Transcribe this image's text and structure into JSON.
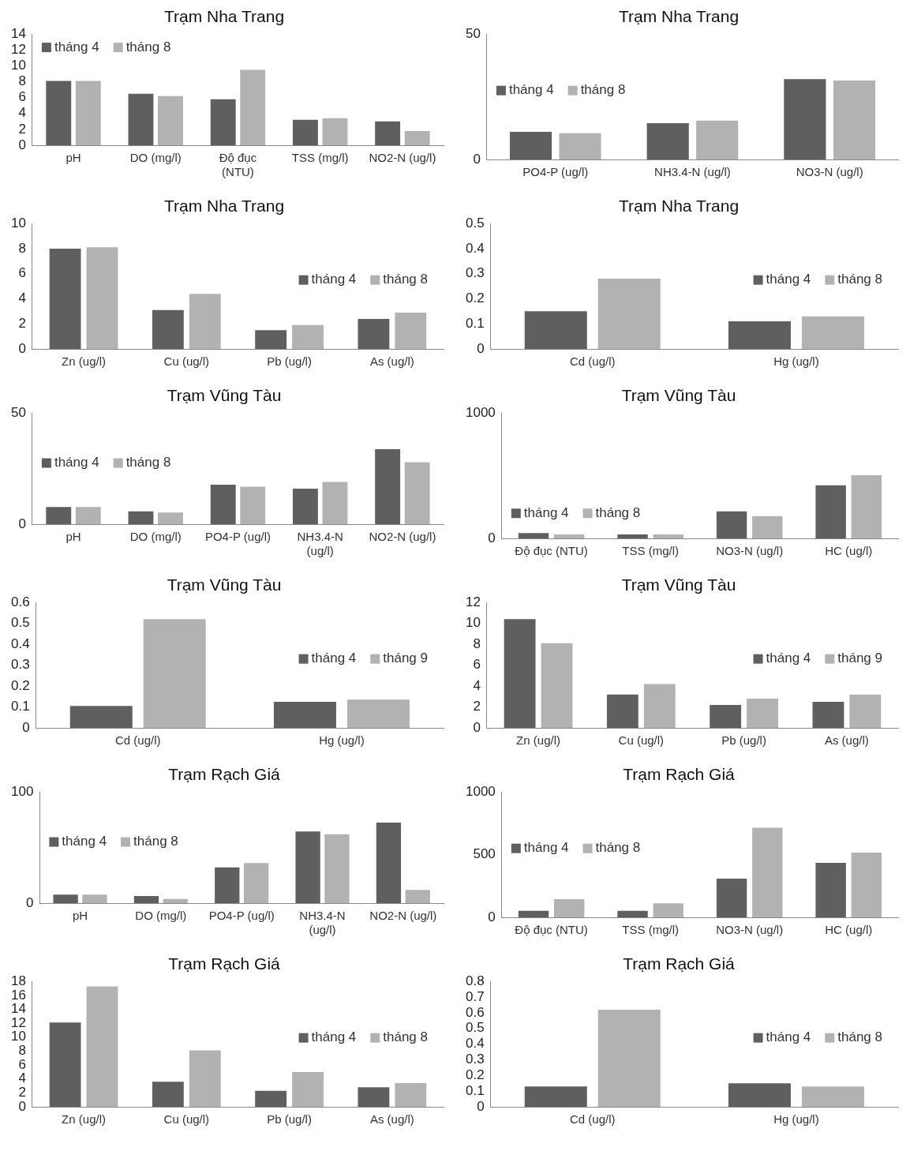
{
  "chart_data": [
    {
      "type": "bar",
      "title": "Trạm Nha Trang",
      "categories": [
        "pH",
        "DO (mg/l)",
        "Độ đục (NTU)",
        "TSS (mg/l)",
        "NO2-N (ug/l)"
      ],
      "ylim": [
        0,
        14
      ],
      "yticks": [
        0,
        2,
        4,
        6,
        8,
        10,
        12,
        14
      ],
      "legend": "top left",
      "series": [
        {
          "name": "tháng 4",
          "color": "#5f5f5f",
          "values": [
            8.1,
            6.5,
            5.8,
            3.2,
            3.0
          ]
        },
        {
          "name": "tháng 8",
          "color": "#b2b2b2",
          "values": [
            8.1,
            6.2,
            9.5,
            3.4,
            1.8
          ]
        }
      ]
    },
    {
      "type": "bar",
      "title": "Trạm Nha Trang",
      "categories": [
        "PO4-P (ug/l)",
        "NH3.4-N (ug/l)",
        "NO3-N (ug/l)"
      ],
      "ylim": [
        0,
        50
      ],
      "yticks": [
        0,
        50
      ],
      "legend": "center left",
      "series": [
        {
          "name": "tháng 4",
          "color": "#5f5f5f",
          "values": [
            11,
            14.5,
            32
          ]
        },
        {
          "name": "tháng 8",
          "color": "#b2b2b2",
          "values": [
            10.5,
            15.5,
            31.5
          ]
        }
      ]
    },
    {
      "type": "bar",
      "title": "Trạm Nha Trang",
      "categories": [
        "Zn (ug/l)",
        "Cu (ug/l)",
        "Pb (ug/l)",
        "As (ug/l)"
      ],
      "ylim": [
        0,
        10
      ],
      "yticks": [
        0,
        2,
        4,
        6,
        8,
        10
      ],
      "legend": "center right",
      "series": [
        {
          "name": "tháng 4",
          "color": "#5f5f5f",
          "values": [
            8.0,
            3.1,
            1.5,
            2.4
          ]
        },
        {
          "name": "tháng 8",
          "color": "#b2b2b2",
          "values": [
            8.1,
            4.4,
            1.9,
            2.9
          ]
        }
      ]
    },
    {
      "type": "bar",
      "title": "Trạm Nha Trang",
      "categories": [
        "Cd (ug/l)",
        "Hg (ug/l)"
      ],
      "ylim": [
        0,
        0.5
      ],
      "yticks": [
        0,
        0.1,
        0.2,
        0.3,
        0.4,
        0.5
      ],
      "legend": "center right",
      "series": [
        {
          "name": "tháng 4",
          "color": "#5f5f5f",
          "values": [
            0.15,
            0.11
          ]
        },
        {
          "name": "tháng 8",
          "color": "#b2b2b2",
          "values": [
            0.28,
            0.13
          ]
        }
      ]
    },
    {
      "type": "bar",
      "title": "Trạm Vũng Tàu",
      "categories": [
        "pH",
        "DO (mg/l)",
        "PO4-P (ug/l)",
        "NH3.4-N (ug/l)",
        "NO2-N (ug/l)"
      ],
      "ylim": [
        0,
        50
      ],
      "yticks": [
        0,
        50
      ],
      "legend": "center left",
      "series": [
        {
          "name": "tháng 4",
          "color": "#5f5f5f",
          "values": [
            7.7,
            5.8,
            17.8,
            16,
            33.7
          ]
        },
        {
          "name": "tháng 8",
          "color": "#b2b2b2",
          "values": [
            7.7,
            5.2,
            16.9,
            19,
            27.9
          ]
        }
      ]
    },
    {
      "type": "bar",
      "title": "Trạm Vũng Tàu",
      "categories": [
        "Độ đục (NTU)",
        "TSS (mg/l)",
        "NO3-N (ug/l)",
        "HC (ug/l)"
      ],
      "ylim": [
        0,
        1000
      ],
      "yticks": [
        0,
        1000
      ],
      "legend": "bottom left",
      "series": [
        {
          "name": "tháng 4",
          "color": "#5f5f5f",
          "values": [
            42,
            31,
            215,
            424
          ]
        },
        {
          "name": "tháng 8",
          "color": "#b2b2b2",
          "values": [
            31,
            31,
            178,
            503
          ]
        }
      ]
    },
    {
      "type": "bar",
      "title": "Trạm Vũng Tàu",
      "categories": [
        "Cd (ug/l)",
        "Hg (ug/l)"
      ],
      "ylim": [
        0,
        0.6
      ],
      "yticks": [
        0,
        0.1,
        0.2,
        0.3,
        0.4,
        0.5,
        0.6
      ],
      "legend": "center right",
      "series": [
        {
          "name": "tháng 4",
          "color": "#5f5f5f",
          "values": [
            0.105,
            0.125
          ]
        },
        {
          "name": "tháng 9",
          "color": "#b2b2b2",
          "values": [
            0.52,
            0.135
          ]
        }
      ]
    },
    {
      "type": "bar",
      "title": "Trạm Vũng Tàu",
      "categories": [
        "Zn (ug/l)",
        "Cu (ug/l)",
        "Pb (ug/l)",
        "As (ug/l)"
      ],
      "ylim": [
        0,
        12
      ],
      "yticks": [
        0,
        2,
        4,
        6,
        8,
        10,
        12
      ],
      "legend": "center right",
      "series": [
        {
          "name": "tháng 4",
          "color": "#5f5f5f",
          "values": [
            10.4,
            3.2,
            2.2,
            2.5
          ]
        },
        {
          "name": "tháng 9",
          "color": "#b2b2b2",
          "values": [
            8.1,
            4.2,
            2.8,
            3.2
          ]
        }
      ]
    },
    {
      "type": "bar",
      "title": "Trạm Rạch Giá",
      "categories": [
        "pH",
        "DO (mg/l)",
        "PO4-P (ug/l)",
        "NH3.4-N (ug/l)",
        "NO2-N (ug/l)"
      ],
      "ylim": [
        0,
        100
      ],
      "yticks": [
        0,
        100
      ],
      "legend": "center left",
      "series": [
        {
          "name": "tháng 4",
          "color": "#5f5f5f",
          "values": [
            7.6,
            6.4,
            32.2,
            64.4,
            72.5
          ]
        },
        {
          "name": "tháng 8",
          "color": "#b2b2b2",
          "values": [
            7.6,
            3.8,
            36,
            61.9,
            11.9
          ]
        }
      ]
    },
    {
      "type": "bar",
      "title": "Trạm Rạch Giá",
      "categories": [
        "Độ đục (NTU)",
        "TSS (mg/l)",
        "NO3-N (ug/l)",
        "HC (ug/l)"
      ],
      "ylim": [
        0,
        1000
      ],
      "yticks": [
        0,
        500,
        1000
      ],
      "legend": "center left",
      "series": [
        {
          "name": "tháng 4",
          "color": "#5f5f5f",
          "values": [
            52,
            52,
            309,
            435
          ]
        },
        {
          "name": "tháng 8",
          "color": "#b2b2b2",
          "values": [
            145,
            112,
            714,
            517
          ]
        }
      ]
    },
    {
      "type": "bar",
      "title": "Trạm Rạch Giá",
      "categories": [
        "Zn (ug/l)",
        "Cu (ug/l)",
        "Pb (ug/l)",
        "As (ug/l)"
      ],
      "ylim": [
        0,
        18
      ],
      "yticks": [
        0,
        2,
        4,
        6,
        8,
        10,
        12,
        14,
        16,
        18
      ],
      "legend": "center right",
      "series": [
        {
          "name": "tháng 4",
          "color": "#5f5f5f",
          "values": [
            12.1,
            3.6,
            2.3,
            2.8
          ]
        },
        {
          "name": "tháng 8",
          "color": "#b2b2b2",
          "values": [
            17.3,
            8.1,
            5.0,
            3.4
          ]
        }
      ]
    },
    {
      "type": "bar",
      "title": "Trạm Rạch Giá",
      "categories": [
        "Cd (ug/l)",
        "Hg (ug/l)"
      ],
      "ylim": [
        0,
        0.8
      ],
      "yticks": [
        0,
        0.1,
        0.2,
        0.3,
        0.4,
        0.5,
        0.6,
        0.7,
        0.8
      ],
      "legend": "center right",
      "series": [
        {
          "name": "tháng 4",
          "color": "#5f5f5f",
          "values": [
            0.13,
            0.15
          ]
        },
        {
          "name": "tháng 8",
          "color": "#b2b2b2",
          "values": [
            0.62,
            0.13
          ]
        }
      ]
    }
  ]
}
